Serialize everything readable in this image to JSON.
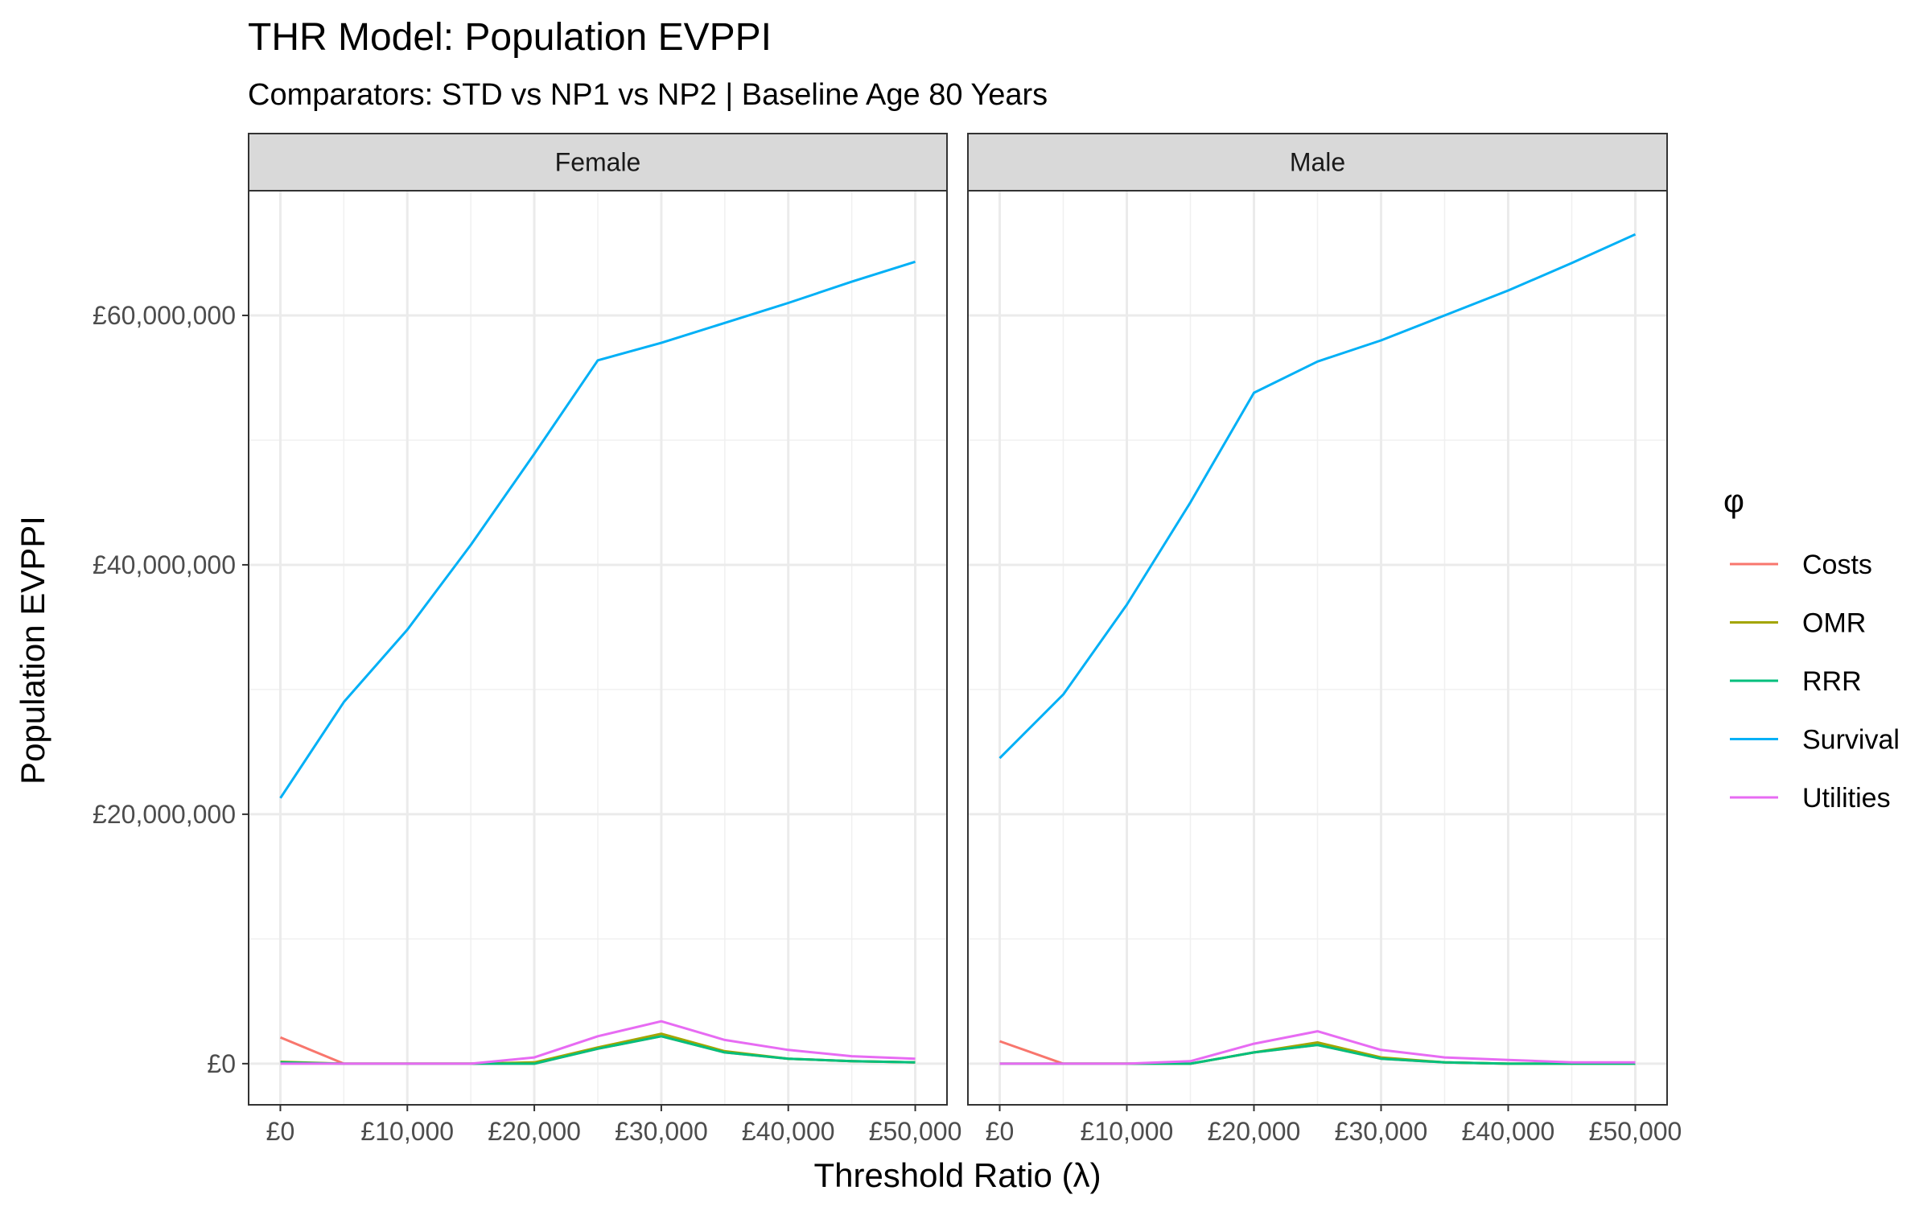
{
  "chart_data": {
    "type": "line",
    "title": "THR Model: Population EVPPI",
    "subtitle": "Comparators: STD vs NP1 vs NP2 | Baseline Age 80 Years",
    "xlabel": "Threshold Ratio (λ)",
    "ylabel": "Population EVPPI",
    "x": [
      0,
      5000,
      10000,
      15000,
      20000,
      25000,
      30000,
      35000,
      40000,
      45000,
      50000
    ],
    "xlim": [
      -2500,
      52500
    ],
    "ylim": [
      -3300000,
      70000000
    ],
    "x_ticks": [
      0,
      10000,
      20000,
      30000,
      40000,
      50000
    ],
    "x_tick_labels": [
      "£0",
      "£10,000",
      "£20,000",
      "£30,000",
      "£40,000",
      "£50,000"
    ],
    "y_ticks": [
      0,
      20000000,
      40000000,
      60000000
    ],
    "y_tick_labels": [
      "£0",
      "£20,000,000",
      "£40,000,000",
      "£60,000,000"
    ],
    "grid": true,
    "legend": {
      "title": "φ",
      "placement": "right",
      "entries": [
        {
          "name": "Costs",
          "color": "#F8766D"
        },
        {
          "name": "OMR",
          "color": "#A3A500"
        },
        {
          "name": "RRR",
          "color": "#00BF7D"
        },
        {
          "name": "Survival",
          "color": "#00B0F6"
        },
        {
          "name": "Utilities",
          "color": "#E76BF3"
        }
      ]
    },
    "panels": [
      {
        "label": "Female",
        "series": [
          {
            "name": "Costs",
            "color": "#F8766D",
            "values": [
              2100000,
              0,
              0,
              0,
              0,
              1200000,
              2200000,
              900000,
              400000,
              200000,
              100000
            ]
          },
          {
            "name": "OMR",
            "color": "#A3A500",
            "values": [
              150000,
              0,
              0,
              0,
              100000,
              1300000,
              2400000,
              1000000,
              400000,
              200000,
              100000
            ]
          },
          {
            "name": "RRR",
            "color": "#00BF7D",
            "values": [
              100000,
              0,
              0,
              0,
              0,
              1200000,
              2200000,
              900000,
              400000,
              200000,
              100000
            ]
          },
          {
            "name": "Survival",
            "color": "#00B0F6",
            "values": [
              21300000,
              29000000,
              34800000,
              41600000,
              48900000,
              56400000,
              57800000,
              59400000,
              61000000,
              62700000,
              64300000
            ]
          },
          {
            "name": "Utilities",
            "color": "#E76BF3",
            "values": [
              0,
              0,
              0,
              0,
              500000,
              2200000,
              3400000,
              1900000,
              1100000,
              600000,
              400000
            ]
          }
        ]
      },
      {
        "label": "Male",
        "series": [
          {
            "name": "Costs",
            "color": "#F8766D",
            "values": [
              1800000,
              0,
              0,
              0,
              900000,
              1500000,
              400000,
              100000,
              0,
              0,
              0
            ]
          },
          {
            "name": "OMR",
            "color": "#A3A500",
            "values": [
              0,
              0,
              0,
              0,
              900000,
              1700000,
              500000,
              100000,
              0,
              0,
              0
            ]
          },
          {
            "name": "RRR",
            "color": "#00BF7D",
            "values": [
              0,
              0,
              0,
              0,
              900000,
              1500000,
              400000,
              100000,
              0,
              0,
              0
            ]
          },
          {
            "name": "Survival",
            "color": "#00B0F6",
            "values": [
              24500000,
              29600000,
              36800000,
              45000000,
              53800000,
              56300000,
              58000000,
              60000000,
              62000000,
              64200000,
              66500000
            ]
          },
          {
            "name": "Utilities",
            "color": "#E76BF3",
            "values": [
              0,
              0,
              0,
              200000,
              1600000,
              2600000,
              1100000,
              500000,
              300000,
              100000,
              100000
            ]
          }
        ]
      }
    ]
  }
}
